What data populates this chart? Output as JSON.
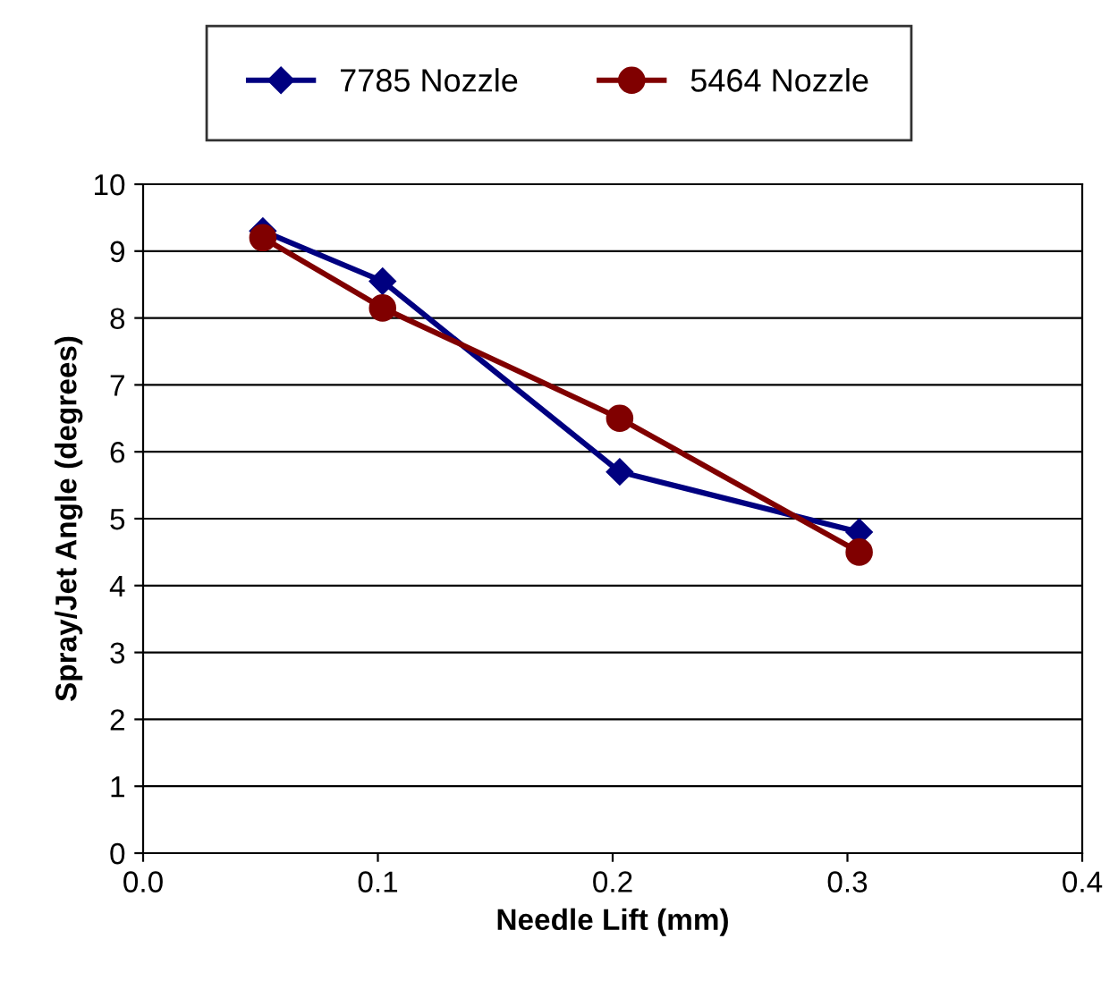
{
  "chart_data": {
    "type": "line",
    "xlabel": "Needle Lift (mm)",
    "ylabel": "Spray/Jet Angle (degrees)",
    "series": [
      {
        "name": "7785 Nozzle",
        "color": "#000080",
        "marker": "diamond",
        "x": [
          0.051,
          0.102,
          0.203,
          0.305
        ],
        "values": [
          9.3,
          8.55,
          5.7,
          4.8
        ]
      },
      {
        "name": "5464 Nozzle",
        "color": "#800000",
        "marker": "circle",
        "x": [
          0.051,
          0.102,
          0.203,
          0.305
        ],
        "values": [
          9.2,
          8.15,
          6.5,
          4.5
        ]
      }
    ],
    "xlim": [
      0,
      0.4
    ],
    "xticks": [
      {
        "value": 0,
        "label": "0.0"
      },
      {
        "value": 0.1,
        "label": "0.1"
      },
      {
        "value": 0.2,
        "label": "0.2"
      },
      {
        "value": 0.3,
        "label": "0.3"
      },
      {
        "value": 0.4,
        "label": "0.4"
      }
    ],
    "ylim": [
      0,
      10
    ],
    "yticks": [
      0,
      1,
      2,
      3,
      4,
      5,
      6,
      7,
      8,
      9,
      10
    ],
    "grid": "y",
    "legend": "top",
    "line_style": "solid"
  }
}
